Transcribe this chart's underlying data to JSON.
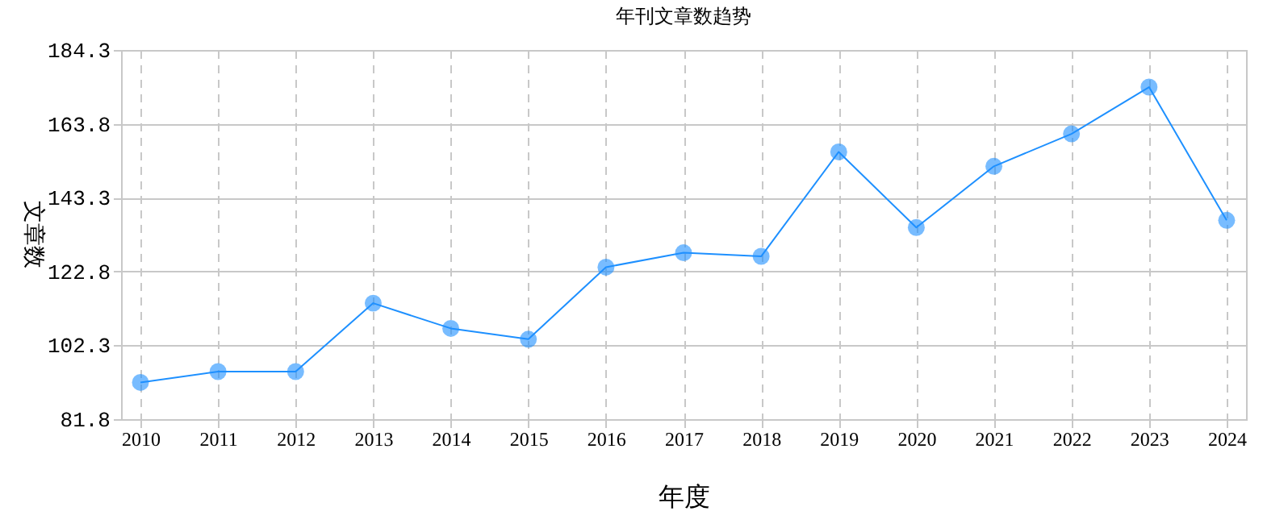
{
  "chart_data": {
    "type": "line",
    "title": "年刊文章数趋势",
    "xlabel": "年度",
    "ylabel": "文章数",
    "categories": [
      "2010",
      "2011",
      "2012",
      "2013",
      "2014",
      "2015",
      "2016",
      "2017",
      "2018",
      "2019",
      "2020",
      "2021",
      "2022",
      "2023",
      "2024"
    ],
    "series": [
      {
        "color": "#1e90ff",
        "values": [
          92,
          95,
          95,
          114,
          107,
          104,
          124,
          128,
          127,
          156,
          135,
          152,
          161,
          174,
          137
        ]
      }
    ],
    "ylim": [
      81.8,
      184.3
    ],
    "yticks": [
      81.8,
      102.3,
      122.8,
      143.3,
      163.8,
      184.3
    ],
    "grid": true,
    "marker": "circle",
    "line_style": "solid"
  }
}
